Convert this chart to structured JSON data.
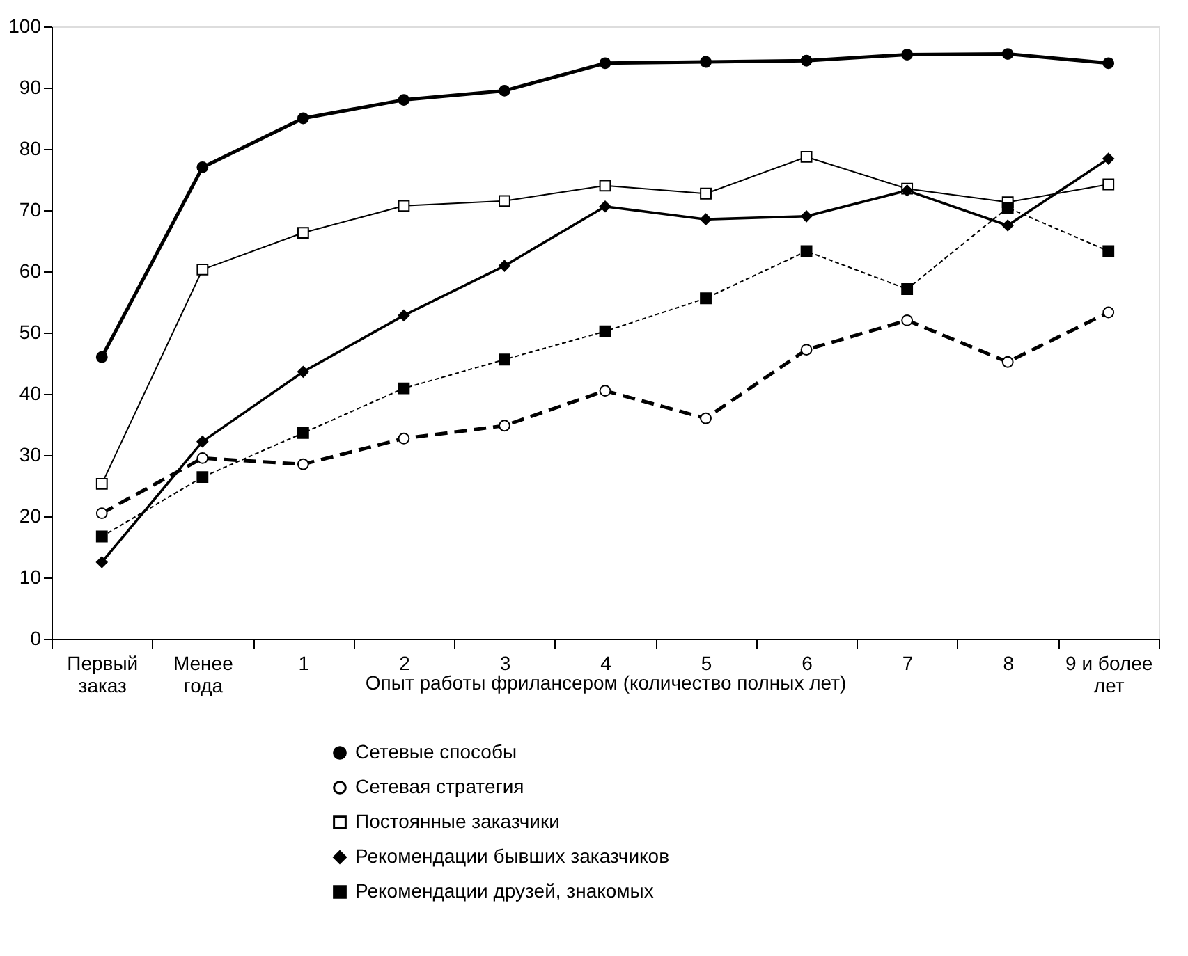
{
  "chart_data": {
    "type": "line",
    "xlabel": "Опыт работы фрилансером (количество полных лет)",
    "categories": [
      "Первый\nзаказ",
      "Менее\nгода",
      "1",
      "2",
      "3",
      "4",
      "5",
      "6",
      "7",
      "8",
      "9 и более\nлет"
    ],
    "ylim": [
      0,
      100
    ],
    "yticks": [
      0,
      10,
      20,
      30,
      40,
      50,
      60,
      70,
      80,
      90,
      100
    ],
    "grid": false,
    "legend": "bottom",
    "series": [
      {
        "name": "Сетевые способы",
        "color": "#000000",
        "marker": "circle",
        "line_style": "solid",
        "values": [
          46,
          77,
          85,
          88,
          89.5,
          94,
          94.2,
          94.4,
          95.4,
          95.5,
          94
        ]
      },
      {
        "name": "Сетевая стратегия",
        "color": "#000000",
        "marker": "circle",
        "line_style": "dashed",
        "values": [
          20.5,
          29.5,
          28.5,
          32.7,
          34.8,
          40.5,
          36,
          47.2,
          52,
          45.2,
          53.3
        ]
      },
      {
        "name": "Постоянные заказчики",
        "color": "#000000",
        "marker": "square",
        "line_style": "solid",
        "values": [
          25.3,
          60.3,
          66.3,
          70.7,
          71.5,
          74,
          72.7,
          78.7,
          73.5,
          71.3,
          74.2
        ]
      },
      {
        "name": "Рекомендации бывших заказчиков",
        "color": "#000000",
        "marker": "diamond",
        "line_style": "solid",
        "values": [
          12.5,
          32.2,
          43.6,
          52.8,
          60.9,
          70.6,
          68.5,
          69,
          73.2,
          67.5,
          78.4
        ]
      },
      {
        "name": "Рекомендации друзей, знакомых",
        "color": "#000000",
        "marker": "square",
        "line_style": "dotted",
        "values": [
          16.7,
          26.4,
          33.6,
          40.9,
          45.6,
          50.2,
          55.6,
          63.3,
          57.1,
          70.4,
          63.3
        ]
      }
    ]
  }
}
